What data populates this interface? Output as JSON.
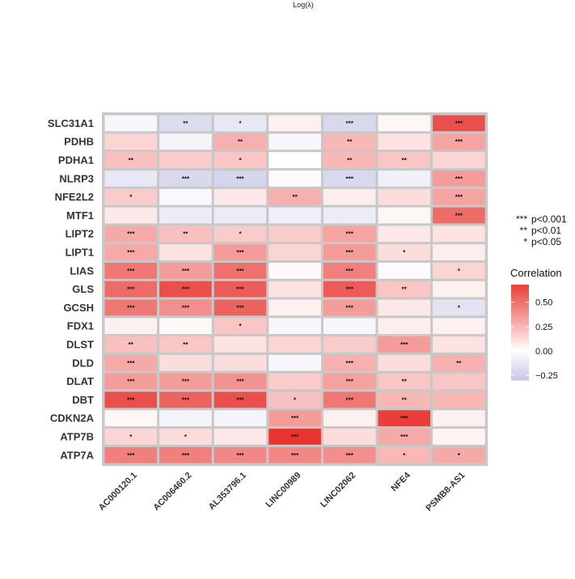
{
  "chart_data": {
    "type": "heatmap",
    "title": "Log(λ)",
    "rows": [
      "SLC31A1",
      "PDHB",
      "PDHA1",
      "NLRP3",
      "NFE2L2",
      "MTF1",
      "LIPT2",
      "LIPT1",
      "LIAS",
      "GLS",
      "GCSH",
      "FDX1",
      "DLST",
      "DLD",
      "DLAT",
      "DBT",
      "CDKN2A",
      "ATP7B",
      "ATP7A"
    ],
    "columns": [
      "AC000120.1",
      "AC006460.2",
      "AL353796.1",
      "LINC00989",
      "LINC02062",
      "NFE4",
      "PSMB8-AS1"
    ],
    "values": [
      [
        -0.05,
        -0.18,
        -0.12,
        0.05,
        -0.2,
        0.03,
        0.62
      ],
      [
        0.15,
        -0.06,
        0.28,
        -0.05,
        0.25,
        0.1,
        0.32
      ],
      [
        0.22,
        0.18,
        0.2,
        0.0,
        0.25,
        0.2,
        0.15
      ],
      [
        -0.12,
        -0.2,
        -0.22,
        -0.02,
        -0.2,
        -0.08,
        0.35
      ],
      [
        0.18,
        -0.03,
        0.08,
        0.28,
        0.06,
        0.12,
        0.32
      ],
      [
        0.08,
        -0.1,
        -0.1,
        -0.08,
        -0.1,
        0.03,
        0.52
      ],
      [
        0.3,
        0.22,
        0.18,
        0.18,
        0.32,
        0.08,
        0.1
      ],
      [
        0.3,
        0.1,
        0.35,
        0.15,
        0.35,
        0.12,
        0.06
      ],
      [
        0.48,
        0.35,
        0.5,
        0.02,
        0.45,
        -0.02,
        0.15
      ],
      [
        0.52,
        0.62,
        0.58,
        0.1,
        0.58,
        0.2,
        0.05
      ],
      [
        0.48,
        0.4,
        0.55,
        0.05,
        0.35,
        0.08,
        -0.15
      ],
      [
        0.05,
        0.02,
        0.2,
        -0.05,
        -0.05,
        0.06,
        0.05
      ],
      [
        0.22,
        0.2,
        0.1,
        0.15,
        0.18,
        0.35,
        0.1
      ],
      [
        0.3,
        0.12,
        0.12,
        -0.05,
        0.28,
        0.12,
        0.28
      ],
      [
        0.35,
        0.35,
        0.38,
        0.18,
        0.33,
        0.2,
        0.2
      ],
      [
        0.62,
        0.55,
        0.62,
        0.22,
        0.48,
        0.25,
        0.25
      ],
      [
        0.03,
        -0.06,
        -0.06,
        0.35,
        0.05,
        0.68,
        0.05
      ],
      [
        0.15,
        0.12,
        0.08,
        0.72,
        0.12,
        0.3,
        0.04
      ],
      [
        0.45,
        0.45,
        0.42,
        0.42,
        0.4,
        0.25,
        0.3
      ]
    ],
    "significance": [
      [
        "",
        "**",
        "*",
        "",
        "***",
        "",
        "***"
      ],
      [
        "",
        "",
        "**",
        "",
        "**",
        "",
        "***"
      ],
      [
        "**",
        "",
        "*",
        "",
        "**",
        "**",
        ""
      ],
      [
        "",
        "***",
        "***",
        "",
        "***",
        "",
        "***"
      ],
      [
        "*",
        "",
        "",
        "**",
        "",
        "",
        "***"
      ],
      [
        "",
        "",
        "",
        "",
        "",
        "",
        "***"
      ],
      [
        "***",
        "**",
        "*",
        "",
        "***",
        "",
        ""
      ],
      [
        "***",
        "",
        "***",
        "",
        "***",
        "*",
        ""
      ],
      [
        "***",
        "***",
        "***",
        "",
        "***",
        "",
        "*"
      ],
      [
        "***",
        "***",
        "***",
        "",
        "***",
        "**",
        ""
      ],
      [
        "***",
        "***",
        "***",
        "",
        "***",
        "",
        "*"
      ],
      [
        "",
        "",
        "*",
        "",
        "",
        "",
        ""
      ],
      [
        "**",
        "**",
        "",
        "",
        "",
        "***",
        ""
      ],
      [
        "***",
        "",
        "",
        "",
        "***",
        "",
        "**"
      ],
      [
        "***",
        "***",
        "***",
        "",
        "***",
        "**",
        ""
      ],
      [
        "***",
        "***",
        "***",
        "*",
        "***",
        "**",
        ""
      ],
      [
        "",
        "",
        "",
        "***",
        "",
        "***",
        ""
      ],
      [
        "*",
        "*",
        "",
        "***",
        "",
        "***",
        ""
      ],
      [
        "***",
        "***",
        "***",
        "***",
        "***",
        "*",
        "*"
      ]
    ],
    "colorscale": {
      "low": "#c6c6e6",
      "mid": "#ffffff",
      "high": "#e8332e",
      "min": -0.3,
      "max": 0.72
    },
    "legend": {
      "significance": [
        {
          "symbol": "***",
          "label": "p<0.001"
        },
        {
          "symbol": "**",
          "label": "p<0.01"
        },
        {
          "symbol": "*",
          "label": "p<0.05"
        }
      ],
      "title": "Correlation",
      "ticks": [
        "0.50",
        "0.25",
        "0.00",
        "−0.25"
      ],
      "tick_values": [
        0.5,
        0.25,
        0.0,
        -0.25
      ],
      "placement": "right"
    }
  }
}
